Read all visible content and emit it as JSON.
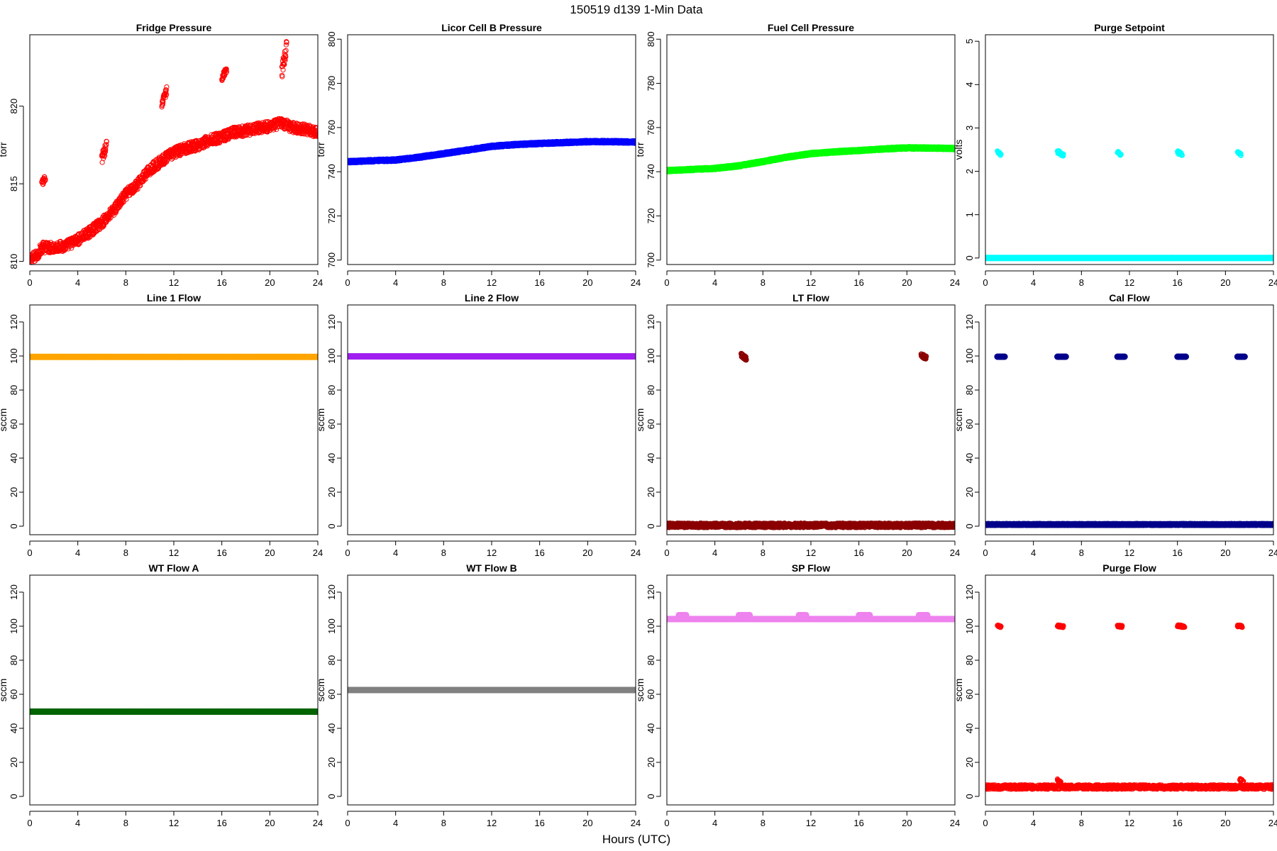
{
  "figure": {
    "title": "150519   d139   1-Min Data",
    "xlabel": "Hours (UTC)"
  },
  "chart_data": [
    {
      "type": "scatter",
      "title": "Fridge Pressure",
      "ylabel": "torr",
      "xlim": [
        0,
        24
      ],
      "ylim": [
        809.8,
        824.6
      ],
      "xticks": [
        0,
        4,
        8,
        12,
        16,
        20,
        24
      ],
      "yticks": [
        810,
        815,
        820
      ],
      "color": "#ff0000",
      "marker": "open-circle",
      "series": [
        {
          "trend": [
            [
              0,
              810.1
            ],
            [
              0.6,
              810.4
            ],
            [
              1,
              810.9
            ],
            [
              2,
              810.9
            ],
            [
              3,
              811.0
            ],
            [
              4,
              811.4
            ],
            [
              5,
              811.9
            ],
            [
              6,
              812.5
            ],
            [
              7,
              813.3
            ],
            [
              8,
              814.3
            ],
            [
              9,
              815.0
            ],
            [
              10,
              815.9
            ],
            [
              11,
              816.5
            ],
            [
              12,
              817.0
            ],
            [
              13,
              817.3
            ],
            [
              14,
              817.5
            ],
            [
              15,
              817.8
            ],
            [
              16,
              818.0
            ],
            [
              17,
              818.3
            ],
            [
              18,
              818.4
            ],
            [
              19,
              818.6
            ],
            [
              20,
              818.7
            ],
            [
              21,
              818.9
            ],
            [
              22,
              818.6
            ],
            [
              23,
              818.5
            ],
            [
              24,
              818.3
            ]
          ],
          "noise": 0.35
        },
        {
          "trend": [
            [
              1.0,
              815.0
            ],
            [
              1.3,
              815.4
            ]
          ],
          "noise": 0.2
        },
        {
          "trend": [
            [
              6.0,
              816.6
            ],
            [
              6.4,
              817.5
            ]
          ],
          "noise": 0.35
        },
        {
          "trend": [
            [
              11.0,
              820.2
            ],
            [
              11.4,
              821.0
            ]
          ],
          "noise": 0.25
        },
        {
          "trend": [
            [
              16.0,
              821.8
            ],
            [
              16.4,
              822.4
            ]
          ],
          "noise": 0.2
        },
        {
          "trend": [
            [
              21.0,
              822.2
            ],
            [
              21.4,
              823.8
            ]
          ],
          "noise": 0.45
        }
      ]
    },
    {
      "type": "scatter",
      "title": "Licor Cell B Pressure",
      "ylabel": "torr",
      "xlim": [
        0,
        24
      ],
      "ylim": [
        698,
        802
      ],
      "xticks": [
        0,
        4,
        8,
        12,
        16,
        20,
        24
      ],
      "yticks": [
        700,
        720,
        740,
        760,
        780,
        800
      ],
      "color": "#0000ff",
      "marker": "filled-circle",
      "series": [
        {
          "trend": [
            [
              0,
              744.5
            ],
            [
              2,
              745.0
            ],
            [
              4,
              745.3
            ],
            [
              6,
              746.6
            ],
            [
              8,
              748.2
            ],
            [
              10,
              749.8
            ],
            [
              12,
              751.5
            ],
            [
              14,
              752.3
            ],
            [
              16,
              752.8
            ],
            [
              18,
              753.2
            ],
            [
              20,
              753.6
            ],
            [
              22,
              753.6
            ],
            [
              24,
              753.4
            ]
          ],
          "noise": 0.3
        }
      ]
    },
    {
      "type": "scatter",
      "title": "Fuel Cell Pressure",
      "ylabel": "torr",
      "xlim": [
        0,
        24
      ],
      "ylim": [
        698,
        802
      ],
      "xticks": [
        0,
        4,
        8,
        12,
        16,
        20,
        24
      ],
      "yticks": [
        700,
        720,
        740,
        760,
        780,
        800
      ],
      "color": "#00ff00",
      "marker": "filled-circle",
      "series": [
        {
          "trend": [
            [
              0,
              740.5
            ],
            [
              2,
              741.0
            ],
            [
              4,
              741.5
            ],
            [
              6,
              742.7
            ],
            [
              8,
              744.6
            ],
            [
              10,
              746.6
            ],
            [
              12,
              748.2
            ],
            [
              14,
              749.0
            ],
            [
              16,
              749.6
            ],
            [
              18,
              750.3
            ],
            [
              20,
              750.8
            ],
            [
              22,
              750.7
            ],
            [
              24,
              750.5
            ]
          ],
          "noise": 0.3
        }
      ]
    },
    {
      "type": "scatter",
      "title": "Purge Setpoint",
      "ylabel": "volts",
      "xlim": [
        0,
        24
      ],
      "ylim": [
        -0.15,
        5.15
      ],
      "xticks": [
        0,
        4,
        8,
        12,
        16,
        20,
        24
      ],
      "yticks": [
        0,
        1,
        2,
        3,
        4,
        5
      ],
      "color": "#00ffff",
      "marker": "mixed",
      "series": [
        {
          "trend": [
            [
              0,
              0
            ],
            [
              24,
              0
            ]
          ],
          "noise": 0
        },
        {
          "trend": [
            [
              1.0,
              2.45
            ],
            [
              1.3,
              2.38
            ]
          ],
          "noise": 0.03
        },
        {
          "trend": [
            [
              6.0,
              2.45
            ],
            [
              6.5,
              2.38
            ]
          ],
          "noise": 0.04
        },
        {
          "trend": [
            [
              11.0,
              2.45
            ],
            [
              11.3,
              2.38
            ]
          ],
          "noise": 0.03
        },
        {
          "trend": [
            [
              16.0,
              2.45
            ],
            [
              16.4,
              2.38
            ]
          ],
          "noise": 0.04
        },
        {
          "trend": [
            [
              21.0,
              2.45
            ],
            [
              21.3,
              2.38
            ]
          ],
          "noise": 0.03
        }
      ]
    },
    {
      "type": "scatter",
      "title": "Line 1 Flow",
      "ylabel": "sccm",
      "xlim": [
        0,
        24
      ],
      "ylim": [
        -5,
        130
      ],
      "xticks": [
        0,
        4,
        8,
        12,
        16,
        20,
        24
      ],
      "yticks": [
        0,
        20,
        40,
        60,
        80,
        100,
        120
      ],
      "color": "#ffa500",
      "marker": "filled-circle",
      "series": [
        {
          "trend": [
            [
              0,
              99.5
            ],
            [
              24,
              99.5
            ]
          ],
          "noise": 0
        }
      ]
    },
    {
      "type": "scatter",
      "title": "Line 2 Flow",
      "ylabel": "sccm",
      "xlim": [
        0,
        24
      ],
      "ylim": [
        -5,
        130
      ],
      "xticks": [
        0,
        4,
        8,
        12,
        16,
        20,
        24
      ],
      "yticks": [
        0,
        20,
        40,
        60,
        80,
        100,
        120
      ],
      "color": "#a020f0",
      "marker": "filled-circle",
      "series": [
        {
          "trend": [
            [
              0,
              99.8
            ],
            [
              24,
              99.8
            ]
          ],
          "noise": 0
        }
      ]
    },
    {
      "type": "scatter",
      "title": "LT Flow",
      "ylabel": "sccm",
      "xlim": [
        0,
        24
      ],
      "ylim": [
        -5,
        130
      ],
      "xticks": [
        0,
        4,
        8,
        12,
        16,
        20,
        24
      ],
      "yticks": [
        0,
        20,
        40,
        60,
        80,
        100,
        120
      ],
      "color": "#8b0000",
      "marker": "open-circle-thick",
      "series": [
        {
          "trend": [
            [
              0,
              0.5
            ],
            [
              24,
              0.5
            ]
          ],
          "noise": 1.2
        },
        {
          "trend": [
            [
              6.2,
              100.5
            ],
            [
              6.6,
              98.5
            ]
          ],
          "noise": 1.0
        },
        {
          "trend": [
            [
              21.2,
              100.5
            ],
            [
              21.6,
              99.0
            ]
          ],
          "noise": 1.0
        }
      ]
    },
    {
      "type": "scatter",
      "title": "Cal Flow",
      "ylabel": "sccm",
      "xlim": [
        0,
        24
      ],
      "ylim": [
        -5,
        130
      ],
      "xticks": [
        0,
        4,
        8,
        12,
        16,
        20,
        24
      ],
      "yticks": [
        0,
        20,
        40,
        60,
        80,
        100,
        120
      ],
      "color": "#00008b",
      "marker": "filled-circle",
      "series": [
        {
          "trend": [
            [
              0,
              1
            ],
            [
              24,
              1
            ]
          ],
          "noise": 0.2
        },
        {
          "trend": [
            [
              1.0,
              99.6
            ],
            [
              1.6,
              99.6
            ]
          ],
          "noise": 0
        },
        {
          "trend": [
            [
              6.0,
              99.6
            ],
            [
              6.7,
              99.6
            ]
          ],
          "noise": 0
        },
        {
          "trend": [
            [
              11.0,
              99.6
            ],
            [
              11.6,
              99.6
            ]
          ],
          "noise": 0
        },
        {
          "trend": [
            [
              16.0,
              99.6
            ],
            [
              16.7,
              99.6
            ]
          ],
          "noise": 0
        },
        {
          "trend": [
            [
              21.0,
              99.6
            ],
            [
              21.6,
              99.6
            ]
          ],
          "noise": 0
        }
      ]
    },
    {
      "type": "scatter",
      "title": "WT Flow A",
      "ylabel": "sccm",
      "xlim": [
        0,
        24
      ],
      "ylim": [
        -5,
        130
      ],
      "xticks": [
        0,
        4,
        8,
        12,
        16,
        20,
        24
      ],
      "yticks": [
        0,
        20,
        40,
        60,
        80,
        100,
        120
      ],
      "color": "#006400",
      "marker": "filled-circle",
      "series": [
        {
          "trend": [
            [
              0,
              49.8
            ],
            [
              24,
              49.8
            ]
          ],
          "noise": 0
        }
      ]
    },
    {
      "type": "scatter",
      "title": "WT Flow B",
      "ylabel": "sccm",
      "xlim": [
        0,
        24
      ],
      "ylim": [
        -5,
        130
      ],
      "xticks": [
        0,
        4,
        8,
        12,
        16,
        20,
        24
      ],
      "yticks": [
        0,
        20,
        40,
        60,
        80,
        100,
        120
      ],
      "color": "#808080",
      "marker": "filled-circle",
      "series": [
        {
          "trend": [
            [
              0,
              62.5
            ],
            [
              24,
              62.5
            ]
          ],
          "noise": 0
        }
      ]
    },
    {
      "type": "scatter",
      "title": "SP Flow",
      "ylabel": "sccm",
      "xlim": [
        0,
        24
      ],
      "ylim": [
        -5,
        130
      ],
      "xticks": [
        0,
        4,
        8,
        12,
        16,
        20,
        24
      ],
      "yticks": [
        0,
        20,
        40,
        60,
        80,
        100,
        120
      ],
      "color": "#ee82ee",
      "marker": "filled-circle",
      "series": [
        {
          "trend": [
            [
              0,
              104.2
            ],
            [
              24,
              104.2
            ]
          ],
          "noise": 0
        },
        {
          "trend": [
            [
              1.0,
              106.5
            ],
            [
              1.6,
              106.5
            ]
          ],
          "noise": 0
        },
        {
          "trend": [
            [
              6.0,
              106.5
            ],
            [
              6.9,
              106.5
            ]
          ],
          "noise": 0
        },
        {
          "trend": [
            [
              11.0,
              106.5
            ],
            [
              11.6,
              106.5
            ]
          ],
          "noise": 0
        },
        {
          "trend": [
            [
              16.0,
              106.5
            ],
            [
              16.9,
              106.5
            ]
          ],
          "noise": 0
        },
        {
          "trend": [
            [
              21.0,
              106.5
            ],
            [
              21.7,
              106.5
            ]
          ],
          "noise": 0
        }
      ]
    },
    {
      "type": "scatter",
      "title": "Purge Flow",
      "ylabel": "sccm",
      "xlim": [
        0,
        24
      ],
      "ylim": [
        -5,
        130
      ],
      "xticks": [
        0,
        4,
        8,
        12,
        16,
        20,
        24
      ],
      "yticks": [
        0,
        20,
        40,
        60,
        80,
        100,
        120
      ],
      "color": "#ff0000",
      "marker": "open-circle",
      "series": [
        {
          "trend": [
            [
              0,
              5.5
            ],
            [
              24,
              5.5
            ]
          ],
          "noise": 1.3
        },
        {
          "trend": [
            [
              1.0,
              100.2
            ],
            [
              1.3,
              99.8
            ]
          ],
          "noise": 0.6
        },
        {
          "trend": [
            [
              6.0,
              100.2
            ],
            [
              6.5,
              99.8
            ]
          ],
          "noise": 0.6
        },
        {
          "trend": [
            [
              11.0,
              100.2
            ],
            [
              11.4,
              99.8
            ]
          ],
          "noise": 0.6
        },
        {
          "trend": [
            [
              16.0,
              100.2
            ],
            [
              16.6,
              99.8
            ]
          ],
          "noise": 0.6
        },
        {
          "trend": [
            [
              21.0,
              100.2
            ],
            [
              21.4,
              99.8
            ]
          ],
          "noise": 0.6
        },
        {
          "trend": [
            [
              6.0,
              9.5
            ],
            [
              6.3,
              8.0
            ]
          ],
          "noise": 0.8
        },
        {
          "trend": [
            [
              21.2,
              10.0
            ],
            [
              21.5,
              8.5
            ]
          ],
          "noise": 0.8
        }
      ]
    }
  ]
}
